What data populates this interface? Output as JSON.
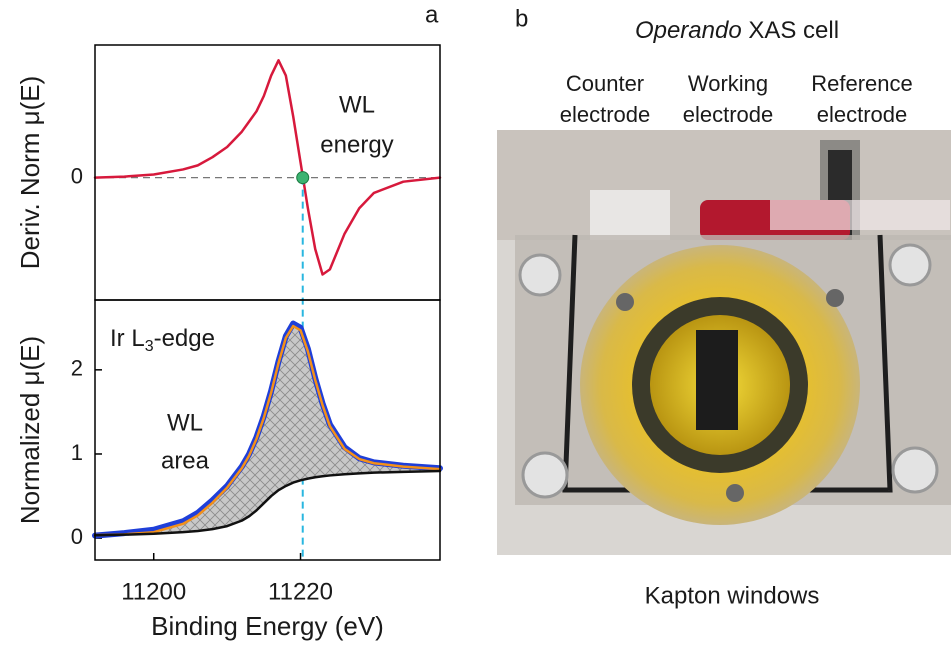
{
  "panel_labels": [
    "a",
    "b"
  ],
  "chart_data": [
    {
      "type": "line",
      "ylabel": "Deriv. Norm μ(E)",
      "annotation": [
        "WL",
        "energy"
      ],
      "x": [
        11192,
        11196,
        11200,
        11204,
        11206,
        11208,
        11210,
        11212,
        11213,
        11214,
        11215,
        11216,
        11217,
        11218,
        11219,
        11220,
        11221,
        11222,
        11223,
        11224,
        11226,
        11228,
        11230,
        11234,
        11239
      ],
      "series": [
        {
          "color": "#d7193c",
          "values": [
            0,
            0.001,
            0.003,
            0.008,
            0.012,
            0.02,
            0.03,
            0.045,
            0.055,
            0.065,
            0.08,
            0.1,
            0.115,
            0.1,
            0.06,
            0.015,
            -0.03,
            -0.07,
            -0.095,
            -0.09,
            -0.055,
            -0.03,
            -0.015,
            -0.004,
            0
          ]
        }
      ],
      "marker": {
        "x": 11220.3,
        "y": 0,
        "color": "#3cb371"
      },
      "vline": {
        "x": 11220.3,
        "color": "#29b6e0"
      },
      "xlim": [
        11192,
        11239
      ],
      "ylim": [
        -0.12,
        0.13
      ],
      "yticks": [
        0
      ],
      "grid": true
    },
    {
      "type": "line",
      "ylabel": "Normalized μ(E)",
      "xlabel": "Binding Energy (eV)",
      "annotation": {
        "edge": [
          "Ir L",
          "3",
          "-edge"
        ],
        "area": [
          "WL",
          "area"
        ]
      },
      "x": [
        11192,
        11196,
        11200,
        11204,
        11206,
        11208,
        11210,
        11212,
        11213,
        11214,
        11215,
        11216,
        11217,
        11218,
        11219,
        11220,
        11221,
        11222,
        11223,
        11224,
        11226,
        11228,
        11230,
        11234,
        11239
      ],
      "series": [
        {
          "color": "#1f3fd9",
          "values": [
            0.03,
            0.06,
            0.1,
            0.2,
            0.3,
            0.45,
            0.62,
            0.85,
            1.0,
            1.2,
            1.45,
            1.75,
            2.1,
            2.4,
            2.55,
            2.5,
            2.25,
            1.9,
            1.6,
            1.35,
            1.08,
            0.95,
            0.9,
            0.86,
            0.83
          ]
        },
        {
          "color": "#f39019",
          "values": [
            0.035,
            0.045,
            0.07,
            0.17,
            0.27,
            0.42,
            0.6,
            0.83,
            0.98,
            1.18,
            1.43,
            1.73,
            2.08,
            2.38,
            2.52,
            2.47,
            2.22,
            1.88,
            1.58,
            1.33,
            1.06,
            0.94,
            0.89,
            0.85,
            0.82
          ]
        },
        {
          "color": "#111111",
          "values": [
            0.034,
            0.041,
            0.052,
            0.071,
            0.085,
            0.107,
            0.143,
            0.208,
            0.26,
            0.33,
            0.415,
            0.5,
            0.57,
            0.62,
            0.66,
            0.687,
            0.707,
            0.723,
            0.735,
            0.745,
            0.759,
            0.77,
            0.778,
            0.788,
            0.797
          ]
        }
      ],
      "hatch": true,
      "xlim": [
        11192,
        11239
      ],
      "ylim": [
        -0.26,
        2.83
      ],
      "yticks": [
        0,
        1,
        2
      ],
      "xticks": [
        11200,
        11220
      ]
    }
  ],
  "photo": {
    "title": [
      "Operando",
      " XAS cell"
    ],
    "electrodes": [
      [
        "Counter",
        "electrode"
      ],
      [
        "Working",
        "electrode"
      ],
      [
        "Reference",
        "electrode"
      ]
    ],
    "caption": "Kapton windows"
  }
}
